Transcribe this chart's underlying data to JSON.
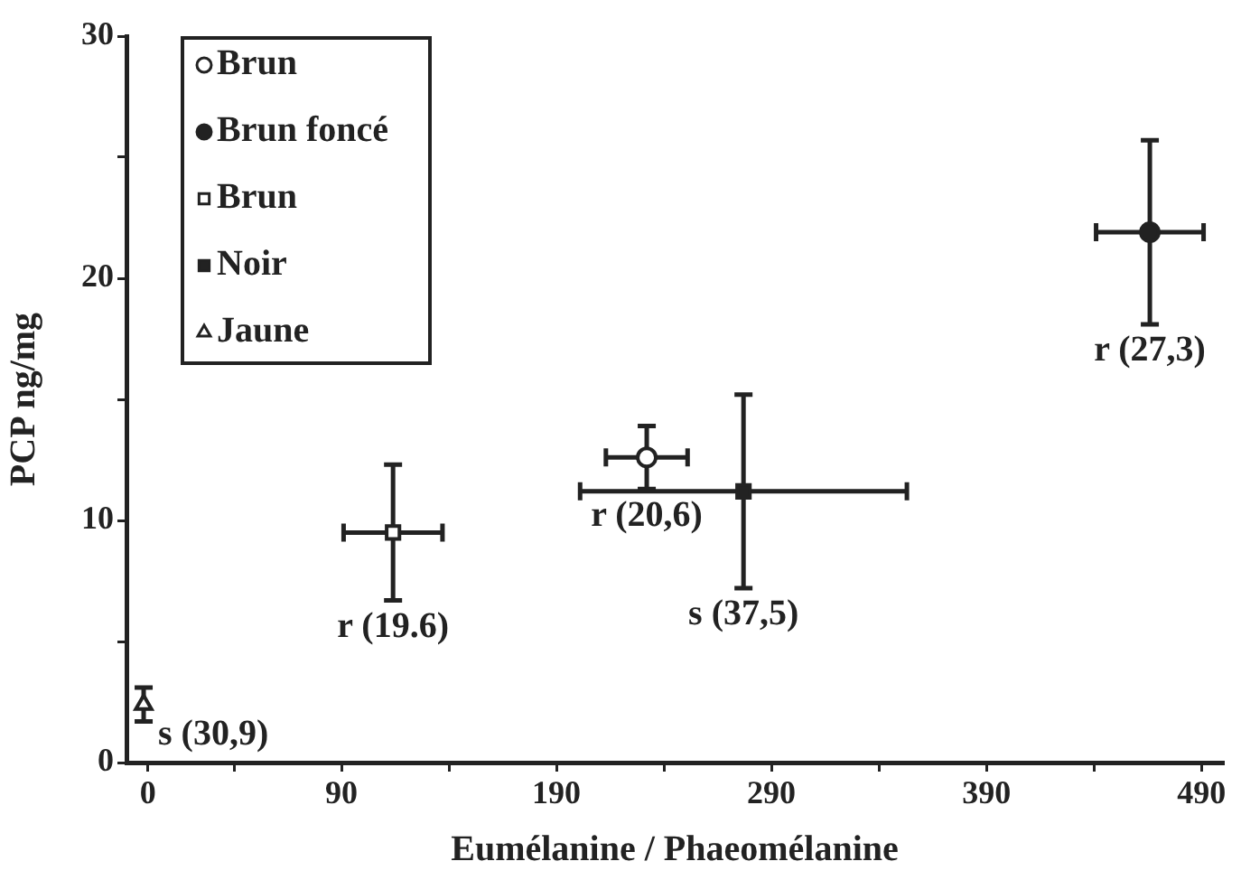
{
  "chart_data": {
    "type": "scatter",
    "xlabel": "Eumélanine / Phaeomélanine",
    "ylabel": "PCP ng/mg",
    "xlim": [
      -10,
      500
    ],
    "xticks": [
      0,
      {
        "value": 40,
        "label": null
      },
      90,
      {
        "value": 140,
        "label": null
      },
      190,
      {
        "value": 240,
        "label": null
      },
      290,
      {
        "value": 340,
        "label": null
      },
      390,
      {
        "value": 440,
        "label": null
      },
      490
    ],
    "ylim": [
      0,
      30
    ],
    "yticks": [
      0,
      {
        "value": 5,
        "label": null
      },
      10,
      {
        "value": 15,
        "label": null
      },
      20,
      {
        "value": 25,
        "label": null
      },
      30
    ],
    "grid": false,
    "legend": "top left",
    "series": [
      {
        "name": "Brun",
        "color": "#ffffff",
        "marker": "circle",
        "x": [
          232
        ],
        "values": [
          12.6
        ],
        "errors": [
          1.3
        ],
        "xerrors": [
          19
        ]
      },
      {
        "name": "Brun foncé",
        "color": "#222222",
        "marker": "circle",
        "x": [
          466
        ],
        "values": [
          21.9
        ],
        "errors": [
          3.8
        ],
        "xerrors": [
          25
        ]
      },
      {
        "name": "Brun",
        "color": "#ffffff",
        "marker": "square",
        "x": [
          114
        ],
        "values": [
          9.5
        ],
        "errors": [
          2.8
        ],
        "xerrors": [
          23
        ]
      },
      {
        "name": "Noir",
        "color": "#222222",
        "marker": "square",
        "x": [
          277
        ],
        "values": [
          11.2
        ],
        "errors": [
          4
        ],
        "xerrors": [
          76
        ]
      },
      {
        "name": "Jaune",
        "color": "#ffffff",
        "marker": "triangle",
        "x": [
          -2
        ],
        "values": [
          2.4
        ],
        "errors": [
          0.7
        ],
        "xerrors": [
          null
        ]
      }
    ],
    "annotations": [
      {
        "text": "r (19.6)",
        "x": 114,
        "y": 9.5
      },
      {
        "text": "r (20,6)",
        "x": 232,
        "y": 12.6
      },
      {
        "text": "s (37,5)",
        "x": 277,
        "y": 11.2
      },
      {
        "text": "r (27,3)",
        "x": 466,
        "y": 21.9
      },
      {
        "text": "s (30,9)",
        "x": -2,
        "y": 2.4
      }
    ]
  }
}
